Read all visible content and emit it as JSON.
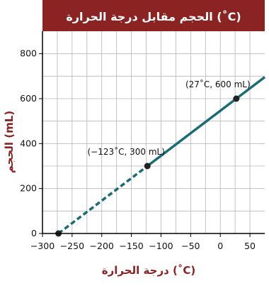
{
  "chart_data": {
    "type": "line",
    "title": "الحجم مقابل درجة الحرارة (˚C)",
    "xlabel": "درجة الحرارة (˚C)",
    "ylabel": "الحجم (mL)",
    "xlim": [
      -300,
      75
    ],
    "ylim": [
      0,
      900
    ],
    "grid": true,
    "x_ticks": [
      -300,
      -250,
      -200,
      -150,
      -100,
      -50,
      0,
      50
    ],
    "x_tick_labels": [
      "−300",
      "−250",
      "−200",
      "−150",
      "−100",
      "−50",
      "0",
      "50"
    ],
    "y_ticks": [
      0,
      200,
      400,
      600,
      800
    ],
    "y_tick_labels": [
      "0",
      "200",
      "400",
      "600",
      "800"
    ],
    "series": [
      {
        "style": "solid",
        "x": [
          -123,
          27,
          75
        ],
        "y": [
          300,
          600,
          696
        ]
      },
      {
        "style": "dashed",
        "x": [
          -273,
          -123
        ],
        "y": [
          0,
          300
        ]
      }
    ],
    "points": [
      {
        "x": -273,
        "y": 0
      },
      {
        "x": -123,
        "y": 300
      },
      {
        "x": 27,
        "y": 600
      }
    ],
    "annotations": [
      {
        "text": "(27˚C, 600 mL)",
        "x": 27,
        "y": 600
      },
      {
        "text": "(−123˚C, 300 mL)",
        "x": -123,
        "y": 300
      }
    ],
    "colors": {
      "title_bg": "#8b2323",
      "line": "#1a6b78",
      "grid": "#b5b5b5",
      "axis_label": "#8b2323"
    }
  }
}
